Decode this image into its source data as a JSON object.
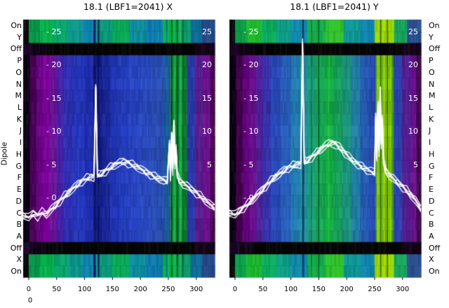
{
  "titles": {
    "left": "18.1 (LBF1=2041) X",
    "right": "18.1 (LBF1=2041) Y"
  },
  "y_axis": {
    "label": "Dipole",
    "row_labels": [
      "On",
      "Y",
      "Off",
      "P",
      "O",
      "N",
      "M",
      "L",
      "K",
      "J",
      "I",
      "H",
      "G",
      "F",
      "E",
      "D",
      "C",
      "B",
      "A",
      "Off",
      "X",
      "On"
    ],
    "row_kinds": [
      "edge",
      "edge",
      "off",
      "main",
      "main",
      "main",
      "main",
      "main",
      "main",
      "main",
      "main",
      "main",
      "main",
      "main",
      "main",
      "main",
      "main",
      "main",
      "main",
      "off",
      "edge",
      "edge"
    ]
  },
  "x_axis": {
    "ticks": [
      "0",
      "50",
      "100",
      "150",
      "200",
      "250",
      "300"
    ],
    "tick_values": [
      0,
      50,
      100,
      150,
      200,
      250,
      300
    ],
    "extra_zero": "0"
  },
  "overlay_axis": {
    "tick_prefix": "- ",
    "left_ticks": [
      "25",
      "20",
      "15",
      "10",
      "5",
      "0"
    ],
    "left_values": [
      25,
      20,
      15,
      10,
      5,
      0
    ],
    "right_ticks": [
      "25",
      "20",
      "15",
      "10",
      "5"
    ],
    "right_values": [
      25,
      20,
      15,
      10,
      5
    ]
  },
  "colors": {
    "background": "#ffffff",
    "trace": "#ffffff",
    "text": "#000000",
    "overlay_text": "#ffffff"
  },
  "chart_data": [
    {
      "type": "heatmap",
      "name": "X",
      "title": "18.1 (LBF1=2041) X",
      "x_range": [
        -10,
        333
      ],
      "overlay_value_range": [
        -5,
        25
      ],
      "main_bands": [
        [
          -10,
          2,
          "#0d0016"
        ],
        [
          2,
          14,
          "#4a0058"
        ],
        [
          14,
          26,
          "#6e008a"
        ],
        [
          26,
          38,
          "#8200a2"
        ],
        [
          38,
          50,
          "#70129e"
        ],
        [
          50,
          62,
          "#4a21ae"
        ],
        [
          62,
          80,
          "#3030bc"
        ],
        [
          80,
          100,
          "#2438c4"
        ],
        [
          100,
          118,
          "#1e2eb4"
        ],
        [
          118,
          132,
          "#141e92"
        ],
        [
          132,
          146,
          "#19279e"
        ],
        [
          146,
          162,
          "#2136bc"
        ],
        [
          162,
          180,
          "#2540c6"
        ],
        [
          180,
          200,
          "#2846ca"
        ],
        [
          200,
          220,
          "#2a4cc6"
        ],
        [
          220,
          238,
          "#2b50bd"
        ],
        [
          238,
          252,
          "#2456ae"
        ],
        [
          252,
          258,
          "#1e7c52"
        ],
        [
          258,
          264,
          "#12a43c"
        ],
        [
          264,
          270,
          "#0f8c30"
        ],
        [
          270,
          277,
          "#14b244"
        ],
        [
          277,
          284,
          "#117a36"
        ],
        [
          284,
          299,
          "#2c3ab0"
        ],
        [
          299,
          314,
          "#5c1d92"
        ],
        [
          314,
          325,
          "#751096"
        ],
        [
          325,
          333,
          "#4a0a55"
        ]
      ],
      "edge_bands": [
        [
          -10,
          0,
          "#0a0a0a"
        ],
        [
          0,
          20,
          "#089848"
        ],
        [
          20,
          45,
          "#06b44e"
        ],
        [
          45,
          70,
          "#08a86e"
        ],
        [
          70,
          95,
          "#0b9a8c"
        ],
        [
          95,
          120,
          "#0d86ae"
        ],
        [
          120,
          150,
          "#0a9a7a"
        ],
        [
          150,
          180,
          "#08ac58"
        ],
        [
          180,
          210,
          "#0b90a0"
        ],
        [
          210,
          240,
          "#0d7eb2"
        ],
        [
          240,
          268,
          "#07b84a"
        ],
        [
          268,
          290,
          "#0a9c6a"
        ],
        [
          290,
          310,
          "#0d6e9a"
        ],
        [
          310,
          333,
          "#244a88"
        ]
      ],
      "off_bands": [
        [
          -10,
          8,
          "#1a0524"
        ],
        [
          8,
          32,
          "#0e0214"
        ],
        [
          32,
          298,
          "#040404"
        ],
        [
          298,
          333,
          "#140318"
        ]
      ],
      "streaks": [
        [
          118,
          "#0c1668",
          3
        ],
        [
          125,
          "#0a1260",
          2
        ],
        [
          247,
          "#0e6e96",
          2
        ],
        [
          256,
          "#064a1a",
          1.5
        ],
        [
          261,
          "#18c050",
          1.6
        ],
        [
          266,
          "#053f16",
          1.5
        ],
        [
          271,
          "#1cc854",
          1.6
        ],
        [
          276,
          "#07531d",
          1.3
        ]
      ],
      "row_shade": [
        0,
        0,
        0,
        0.05,
        0.02,
        0,
        0.06,
        0.08,
        0.04,
        0,
        0.03,
        0.06,
        0.02,
        0,
        0.04,
        0.02,
        0,
        0.03,
        0.05,
        0,
        0,
        0
      ],
      "line": [
        [
          -10,
          -2.6
        ],
        [
          0,
          -2.9
        ],
        [
          8,
          -2.3
        ],
        [
          16,
          -2.7
        ],
        [
          24,
          -2.1
        ],
        [
          32,
          -2.4
        ],
        [
          40,
          -1.7
        ],
        [
          48,
          -1.1
        ],
        [
          56,
          -0.4
        ],
        [
          64,
          0.3
        ],
        [
          72,
          0.9
        ],
        [
          80,
          1.5
        ],
        [
          88,
          2.1
        ],
        [
          96,
          2.6
        ],
        [
          104,
          3.0
        ],
        [
          112,
          3.2
        ],
        [
          117,
          3.3
        ],
        [
          120,
          16.6
        ],
        [
          123,
          3.5
        ],
        [
          130,
          3.7
        ],
        [
          138,
          4.1
        ],
        [
          146,
          4.6
        ],
        [
          154,
          5.0
        ],
        [
          162,
          5.3
        ],
        [
          170,
          5.5
        ],
        [
          178,
          5.3
        ],
        [
          186,
          5.0
        ],
        [
          194,
          4.7
        ],
        [
          202,
          4.3
        ],
        [
          210,
          3.9
        ],
        [
          218,
          3.6
        ],
        [
          226,
          3.2
        ],
        [
          234,
          2.9
        ],
        [
          242,
          2.7
        ],
        [
          248,
          2.5
        ],
        [
          252,
          8.3
        ],
        [
          254,
          3.1
        ],
        [
          256,
          9.6
        ],
        [
          258,
          4.2
        ],
        [
          260,
          11.4
        ],
        [
          262,
          5.0
        ],
        [
          264,
          7.4
        ],
        [
          266,
          3.4
        ],
        [
          270,
          2.6
        ],
        [
          276,
          2.2
        ],
        [
          284,
          1.8
        ],
        [
          292,
          1.3
        ],
        [
          300,
          0.8
        ],
        [
          308,
          0.3
        ],
        [
          316,
          -0.3
        ],
        [
          324,
          -0.9
        ],
        [
          333,
          -1.4
        ]
      ]
    },
    {
      "type": "heatmap",
      "name": "Y",
      "title": "18.1 (LBF1=2041) Y",
      "x_range": [
        -10,
        333
      ],
      "overlay_value_range": [
        -5,
        25
      ],
      "main_bands": [
        [
          -10,
          2,
          "#0c0014"
        ],
        [
          2,
          14,
          "#44004f"
        ],
        [
          14,
          26,
          "#660083"
        ],
        [
          26,
          38,
          "#6b0f92"
        ],
        [
          38,
          50,
          "#52219f"
        ],
        [
          50,
          64,
          "#3734b4"
        ],
        [
          64,
          82,
          "#2a4cc0"
        ],
        [
          82,
          100,
          "#2762c2"
        ],
        [
          100,
          116,
          "#2380b8"
        ],
        [
          116,
          130,
          "#1e96a4"
        ],
        [
          130,
          145,
          "#1ba37e"
        ],
        [
          145,
          160,
          "#16ad5a"
        ],
        [
          160,
          176,
          "#12b244"
        ],
        [
          176,
          192,
          "#16a85e"
        ],
        [
          192,
          208,
          "#1b9a80"
        ],
        [
          208,
          224,
          "#2183a8"
        ],
        [
          224,
          240,
          "#265eba"
        ],
        [
          240,
          252,
          "#2a4cbe"
        ],
        [
          252,
          258,
          "#52b422"
        ],
        [
          258,
          264,
          "#86cc10"
        ],
        [
          264,
          270,
          "#5fb81a"
        ],
        [
          270,
          277,
          "#8ed40e"
        ],
        [
          277,
          284,
          "#4aa81e"
        ],
        [
          284,
          299,
          "#2b44b4"
        ],
        [
          299,
          314,
          "#55209a"
        ],
        [
          314,
          325,
          "#6b1290"
        ],
        [
          325,
          333,
          "#430a50"
        ]
      ],
      "edge_bands": [
        [
          -10,
          0,
          "#0a0a0a"
        ],
        [
          0,
          20,
          "#0aa04a"
        ],
        [
          20,
          48,
          "#1cba2e"
        ],
        [
          48,
          75,
          "#0cb060"
        ],
        [
          75,
          100,
          "#0ca08a"
        ],
        [
          100,
          130,
          "#0e8cb0"
        ],
        [
          130,
          162,
          "#16b04e"
        ],
        [
          162,
          195,
          "#30c42a"
        ],
        [
          195,
          225,
          "#0e9a9a"
        ],
        [
          225,
          250,
          "#0d86b0"
        ],
        [
          250,
          285,
          "#9cd80a"
        ],
        [
          285,
          308,
          "#18a85e"
        ],
        [
          308,
          333,
          "#2a5090"
        ]
      ],
      "off_bands": [
        [
          -10,
          8,
          "#1a0524"
        ],
        [
          8,
          32,
          "#0e0214"
        ],
        [
          32,
          298,
          "#040404"
        ],
        [
          298,
          333,
          "#140318"
        ]
      ],
      "streaks": [
        [
          122,
          "#123a60",
          2.5
        ],
        [
          137,
          "#0e8040",
          1.5
        ],
        [
          150,
          "#0a5a20",
          1.5
        ],
        [
          168,
          "#22cc44",
          2
        ],
        [
          256,
          "#a8e000",
          2
        ],
        [
          261,
          "#2f6a08",
          1.5
        ],
        [
          267,
          "#b4e400",
          2
        ],
        [
          273,
          "#2f6a08",
          1.5
        ],
        [
          279,
          "#98d800",
          2
        ]
      ],
      "row_shade": [
        0,
        0,
        0,
        0.06,
        0.03,
        0,
        0.04,
        0.07,
        0.03,
        0,
        0.02,
        0.05,
        0.02,
        0,
        0.03,
        0.05,
        0.02,
        0,
        0.04,
        0,
        0,
        0
      ],
      "line": [
        [
          -10,
          -2.2
        ],
        [
          0,
          -2.5
        ],
        [
          8,
          -1.9
        ],
        [
          16,
          -1.4
        ],
        [
          24,
          -0.8
        ],
        [
          32,
          -0.2
        ],
        [
          40,
          0.5
        ],
        [
          48,
          1.2
        ],
        [
          56,
          1.9
        ],
        [
          64,
          2.6
        ],
        [
          72,
          3.2
        ],
        [
          80,
          3.7
        ],
        [
          88,
          4.2
        ],
        [
          96,
          4.6
        ],
        [
          104,
          4.9
        ],
        [
          112,
          5.1
        ],
        [
          118,
          5.2
        ],
        [
          121,
          23.4
        ],
        [
          124,
          5.4
        ],
        [
          130,
          5.7
        ],
        [
          138,
          6.2
        ],
        [
          146,
          6.8
        ],
        [
          154,
          7.4
        ],
        [
          162,
          7.9
        ],
        [
          168,
          8.2
        ],
        [
          174,
          8.3
        ],
        [
          180,
          8.1
        ],
        [
          188,
          7.6
        ],
        [
          196,
          6.9
        ],
        [
          204,
          6.2
        ],
        [
          212,
          5.6
        ],
        [
          220,
          5.1
        ],
        [
          228,
          4.7
        ],
        [
          236,
          4.3
        ],
        [
          244,
          4.0
        ],
        [
          250,
          3.8
        ],
        [
          252,
          12.4
        ],
        [
          254,
          6.1
        ],
        [
          256,
          14.2
        ],
        [
          258,
          7.0
        ],
        [
          260,
          16.4
        ],
        [
          262,
          8.0
        ],
        [
          264,
          11.8
        ],
        [
          266,
          5.4
        ],
        [
          270,
          4.1
        ],
        [
          276,
          3.5
        ],
        [
          284,
          2.9
        ],
        [
          292,
          2.3
        ],
        [
          300,
          1.7
        ],
        [
          308,
          1.1
        ],
        [
          316,
          0.4
        ],
        [
          324,
          -0.4
        ],
        [
          333,
          -1.6
        ]
      ]
    }
  ]
}
